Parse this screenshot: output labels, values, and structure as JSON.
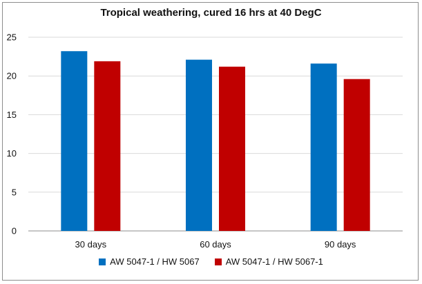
{
  "chart_data": {
    "type": "bar",
    "title": "Tropical weathering, cured 16 hrs at 40 DegC",
    "categories": [
      "30 days",
      "60 days",
      "90 days"
    ],
    "series": [
      {
        "name": "AW 5047-1 / HW 5067",
        "values": [
          23.2,
          22.1,
          21.6
        ],
        "color": "#0070c0"
      },
      {
        "name": "AW 5047-1 / HW 5067-1",
        "values": [
          21.9,
          21.2,
          19.6
        ],
        "color": "#c00000"
      }
    ],
    "ylim": [
      0,
      25
    ],
    "yticks": [
      0,
      5,
      10,
      15,
      20,
      25
    ],
    "grid": true,
    "legend": "bottom"
  }
}
